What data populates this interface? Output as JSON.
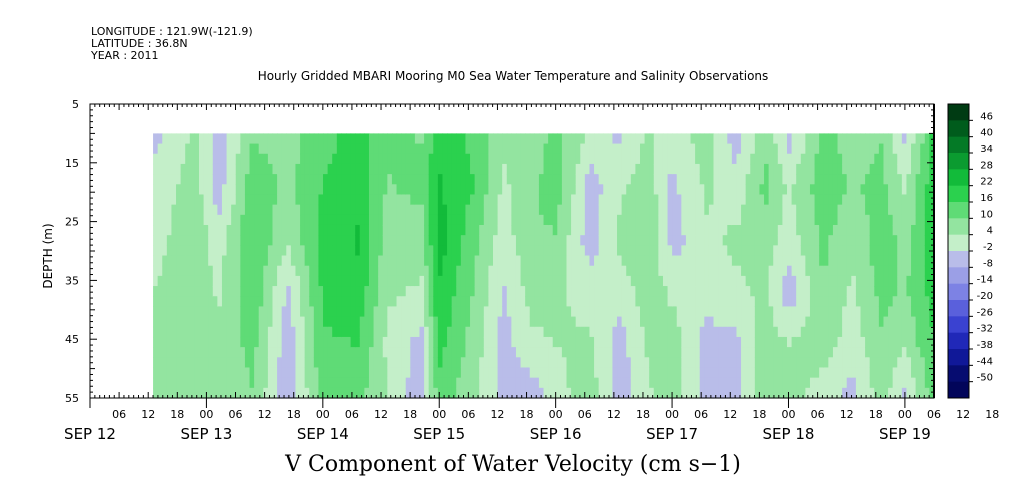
{
  "header": {
    "longitude": "LONGITUDE : 121.9W(-121.9)",
    "latitude": "LATITUDE : 36.8N",
    "year": "YEAR : 2011"
  },
  "chart_data": {
    "type": "heatmap",
    "title": "Hourly Gridded MBARI Mooring M0 Sea Water Temperature and Salinity Observations",
    "xlabel": "V Component of Water Velocity (cm s−1)",
    "ylabel": "DEPTH (m)",
    "y_axis": {
      "reversed": true,
      "ylim": [
        5,
        55
      ],
      "ticks": [
        5,
        15,
        25,
        35,
        45,
        55
      ]
    },
    "x_axis": {
      "hour_ticks": [
        "06",
        "12",
        "18",
        "00",
        "06",
        "12",
        "18",
        "00",
        "06",
        "12",
        "18",
        "00",
        "06",
        "12",
        "18",
        "00",
        "06",
        "12",
        "18",
        "00",
        "06",
        "12",
        "18",
        "00",
        "06",
        "12",
        "18",
        "00",
        "06",
        "12",
        "18",
        "00"
      ],
      "day_labels": [
        "SEP 12",
        "SEP 13",
        "SEP 14",
        "SEP 15",
        "SEP 16",
        "SEP 17",
        "SEP 18",
        "SEP 19"
      ],
      "start": "2011-09-12 00:00",
      "end": "2011-09-19 06:00"
    },
    "data_extent": {
      "time_start": "2011-09-12 13:00",
      "time_end": "2011-09-19 06:00",
      "depth_min": 10,
      "depth_max": 55
    },
    "colorbar": {
      "labels": [
        46,
        40,
        34,
        28,
        22,
        16,
        10,
        4,
        -2,
        -8,
        -14,
        -20,
        -26,
        -32,
        -38,
        -44,
        -50
      ],
      "min": -50,
      "max": 49,
      "colors": [
        "#003b13",
        "#005c1c",
        "#047a26",
        "#0b9b30",
        "#12bb3a",
        "#2bd14e",
        "#5fdb76",
        "#93e4a0",
        "#c4efc9",
        "#b9bde9",
        "#9b9fe6",
        "#7d82e4",
        "#5a60dc",
        "#3a42d1",
        "#2028b8",
        "#101898",
        "#060c70",
        "#02055a"
      ]
    },
    "profiles": [
      {
        "day": 12.55,
        "v": [
          -2,
          1,
          3,
          5,
          6,
          7
        ]
      },
      {
        "day": 12.9,
        "v": [
          6,
          8,
          9,
          10,
          9,
          8
        ]
      },
      {
        "day": 13.1,
        "v": [
          -3,
          -4,
          2,
          4,
          7,
          9
        ]
      },
      {
        "day": 13.4,
        "v": [
          10,
          14,
          16,
          15,
          12,
          10
        ]
      },
      {
        "day": 13.7,
        "v": [
          8,
          9,
          6,
          -2,
          -4,
          -5
        ]
      },
      {
        "day": 14.0,
        "v": [
          14,
          16,
          18,
          17,
          15,
          13
        ]
      },
      {
        "day": 14.3,
        "v": [
          18,
          20,
          22,
          20,
          16,
          12
        ]
      },
      {
        "day": 14.55,
        "v": [
          12,
          10,
          8,
          6,
          4,
          6
        ]
      },
      {
        "day": 14.85,
        "v": [
          10,
          12,
          8,
          4,
          -3,
          -5
        ]
      },
      {
        "day": 15.0,
        "v": [
          20,
          22,
          24,
          21,
          18,
          14
        ]
      },
      {
        "day": 15.3,
        "v": [
          14,
          16,
          12,
          10,
          8,
          6
        ]
      },
      {
        "day": 15.55,
        "v": [
          6,
          4,
          2,
          -1,
          -3,
          -2
        ]
      },
      {
        "day": 15.8,
        "v": [
          8,
          9,
          10,
          7,
          4,
          -4
        ]
      },
      {
        "day": 16.0,
        "v": [
          12,
          14,
          10,
          6,
          5,
          3
        ]
      },
      {
        "day": 16.3,
        "v": [
          4,
          -3,
          -4,
          3,
          6,
          8
        ]
      },
      {
        "day": 16.55,
        "v": [
          -2,
          4,
          6,
          2,
          -3,
          -4
        ]
      },
      {
        "day": 16.8,
        "v": [
          6,
          8,
          10,
          8,
          6,
          4
        ]
      },
      {
        "day": 17.0,
        "v": [
          2,
          -2,
          -3,
          4,
          8,
          9
        ]
      },
      {
        "day": 17.3,
        "v": [
          8,
          6,
          4,
          2,
          -3,
          -4
        ]
      },
      {
        "day": 17.55,
        "v": [
          -4,
          2,
          6,
          4,
          -2,
          -3
        ]
      },
      {
        "day": 17.8,
        "v": [
          10,
          12,
          8,
          6,
          9,
          10
        ]
      },
      {
        "day": 18.0,
        "v": [
          -3,
          4,
          2,
          -4,
          5,
          8
        ]
      },
      {
        "day": 18.3,
        "v": [
          12,
          14,
          12,
          10,
          8,
          2
        ]
      },
      {
        "day": 18.55,
        "v": [
          8,
          10,
          6,
          4,
          2,
          -3
        ]
      },
      {
        "day": 18.8,
        "v": [
          10,
          12,
          14,
          12,
          10,
          8
        ]
      },
      {
        "day": 19.0,
        "v": [
          -2,
          4,
          8,
          10,
          6,
          -3
        ]
      },
      {
        "day": 19.25,
        "v": [
          18,
          20,
          20,
          18,
          16,
          14
        ]
      }
    ]
  }
}
